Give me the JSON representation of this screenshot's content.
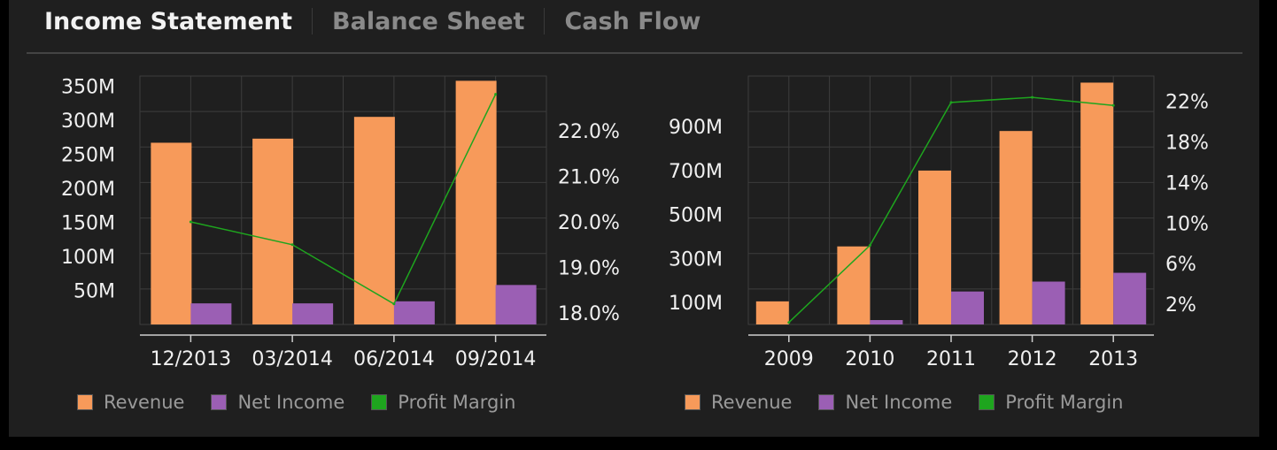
{
  "tabs": [
    {
      "label": "Income Statement",
      "active": true
    },
    {
      "label": "Balance Sheet",
      "active": false
    },
    {
      "label": "Cash Flow",
      "active": false
    }
  ],
  "colors": {
    "revenue": "#f79a5a",
    "net_income": "#9b5fb4",
    "profit_margin": "#1ea51e",
    "grid": "#3d3d3d",
    "text": "#f0f0f0"
  },
  "legends": [
    {
      "items": [
        {
          "label": "Revenue",
          "color": "#f79a5a"
        },
        {
          "label": "Net Income",
          "color": "#9b5fb4"
        },
        {
          "label": "Profit Margin",
          "color": "#1ea51e"
        }
      ]
    },
    {
      "items": [
        {
          "label": "Revenue",
          "color": "#f79a5a"
        },
        {
          "label": "Net Income",
          "color": "#9b5fb4"
        },
        {
          "label": "Profit Margin",
          "color": "#1ea51e"
        }
      ]
    }
  ],
  "chart_data": [
    {
      "type": "bar",
      "categories": [
        "12/2013",
        "03/2014",
        "06/2014",
        "09/2014"
      ],
      "series": [
        {
          "name": "Revenue",
          "type": "bar",
          "axis": "left",
          "values": [
            267,
            273,
            305,
            358
          ]
        },
        {
          "name": "Net Income",
          "type": "bar",
          "axis": "left",
          "values": [
            31,
            31,
            34,
            58
          ]
        },
        {
          "name": "Profit Margin",
          "type": "line",
          "axis": "right",
          "values": [
            20.0,
            19.5,
            18.2,
            22.8
          ]
        }
      ],
      "y_left": {
        "ticks": [
          50,
          100,
          150,
          200,
          250,
          300,
          350
        ],
        "tick_labels": [
          "50M",
          "100M",
          "150M",
          "200M",
          "250M",
          "300M",
          "350M"
        ],
        "ylim": [
          0,
          365
        ]
      },
      "y_right": {
        "ticks": [
          18.0,
          19.0,
          20.0,
          21.0,
          22.0
        ],
        "tick_labels": [
          "18.0%",
          "19.0%",
          "20.0%",
          "21.0%",
          "22.0%"
        ],
        "ylim": [
          17.75,
          23.2
        ]
      },
      "grid": true,
      "legend_position": "bottom-left"
    },
    {
      "type": "bar",
      "categories": [
        "2009",
        "2010",
        "2011",
        "2012",
        "2013"
      ],
      "series": [
        {
          "name": "Revenue",
          "type": "bar",
          "axis": "left",
          "values": [
            105,
            355,
            700,
            880,
            1100
          ]
        },
        {
          "name": "Net Income",
          "type": "bar",
          "axis": "left",
          "values": [
            0,
            20,
            150,
            195,
            235
          ]
        },
        {
          "name": "Profit Margin",
          "type": "line",
          "axis": "right",
          "values": [
            0.2,
            7.8,
            21.9,
            22.4,
            21.6
          ]
        }
      ],
      "y_left": {
        "ticks": [
          100,
          300,
          500,
          700,
          900
        ],
        "tick_labels": [
          "100M",
          "300M",
          "500M",
          "700M",
          "900M"
        ],
        "ylim": [
          0,
          1130
        ]
      },
      "y_right": {
        "ticks": [
          2,
          6,
          10,
          14,
          18,
          22
        ],
        "tick_labels": [
          "2%",
          "6%",
          "10%",
          "14%",
          "18%",
          "22%"
        ],
        "ylim": [
          0,
          24.5
        ]
      },
      "grid": true,
      "legend_position": "bottom-left"
    }
  ]
}
